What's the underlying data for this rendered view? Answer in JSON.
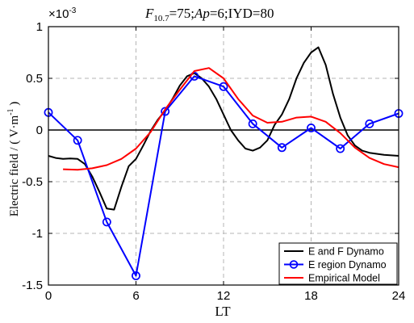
{
  "chart_data": {
    "type": "line",
    "title": {
      "f_label": "F",
      "f_sub": "10.7",
      "f_value": "=75;",
      "ap_label": "Ap",
      "ap_value": "=6;IYD=80"
    },
    "xlabel": "LT",
    "ylabel": {
      "prefix": "Electric field / ( V·m",
      "sup": "-1",
      "suffix": " )"
    },
    "exponent_label": {
      "base": "×10",
      "exp": "-3"
    },
    "xlim": [
      0,
      24
    ],
    "ylim": [
      -1.5,
      1
    ],
    "x_ticks": [
      0,
      6,
      12,
      18,
      24
    ],
    "x_tick_labels": [
      "0",
      "6",
      "12",
      "18",
      "24"
    ],
    "y_ticks": [
      1,
      0.5,
      0,
      -0.5,
      -1,
      -1.5
    ],
    "y_tick_labels": [
      "1",
      "0.5",
      "0",
      "-0.5",
      "-1",
      "-1.5"
    ],
    "grid": "dashed",
    "legend_position": "bottom-right",
    "series": [
      {
        "name": "E and F Dynamo",
        "color": "#000000",
        "marker": "none",
        "x": [
          0,
          0.5,
          1,
          1.5,
          2,
          2.5,
          3,
          3.5,
          4,
          4.5,
          5,
          5.5,
          6,
          6.5,
          7,
          7.5,
          8,
          8.5,
          9,
          9.5,
          10,
          10.5,
          11,
          11.5,
          12,
          12.5,
          13,
          13.5,
          14,
          14.5,
          15,
          15.5,
          16,
          16.5,
          17,
          17.5,
          18,
          18.5,
          19,
          19.5,
          20,
          20.5,
          21,
          21.5,
          22,
          23,
          24
        ],
        "y": [
          -0.25,
          -0.27,
          -0.28,
          -0.275,
          -0.28,
          -0.33,
          -0.45,
          -0.6,
          -0.76,
          -0.77,
          -0.55,
          -0.35,
          -0.28,
          -0.15,
          -0.01,
          0.1,
          0.19,
          0.3,
          0.43,
          0.52,
          0.55,
          0.5,
          0.42,
          0.3,
          0.15,
          0.0,
          -0.1,
          -0.18,
          -0.2,
          -0.17,
          -0.1,
          0.05,
          0.15,
          0.3,
          0.5,
          0.65,
          0.75,
          0.8,
          0.63,
          0.35,
          0.12,
          -0.05,
          -0.15,
          -0.2,
          -0.22,
          -0.24,
          -0.25
        ]
      },
      {
        "name": "E region Dynamo",
        "color": "#0000ff",
        "marker": "circle",
        "x": [
          0,
          2,
          4,
          6,
          8,
          10,
          12,
          14,
          16,
          18,
          20,
          22,
          24
        ],
        "y": [
          0.17,
          -0.1,
          -0.89,
          -1.41,
          0.18,
          0.52,
          0.42,
          0.06,
          -0.17,
          0.02,
          -0.18,
          0.06,
          0.16
        ]
      },
      {
        "name": "Empirical Model",
        "color": "#ff0000",
        "marker": "none",
        "x": [
          1,
          2,
          3,
          4,
          5,
          6,
          7,
          8,
          9,
          10,
          11,
          12,
          13,
          14,
          15,
          16,
          17,
          18,
          19,
          20,
          21,
          22,
          23,
          24
        ],
        "y": [
          -0.38,
          -0.385,
          -0.37,
          -0.34,
          -0.28,
          -0.18,
          -0.02,
          0.2,
          0.39,
          0.57,
          0.6,
          0.5,
          0.3,
          0.14,
          0.07,
          0.08,
          0.12,
          0.13,
          0.08,
          -0.03,
          -0.17,
          -0.27,
          -0.33,
          -0.36
        ]
      }
    ]
  }
}
